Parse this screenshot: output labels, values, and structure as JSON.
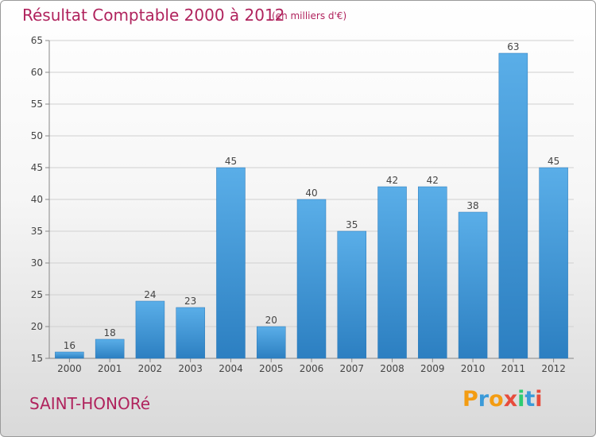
{
  "chart_data": {
    "type": "bar",
    "title": "Résultat Comptable 2000 à 2012",
    "subtitle": "(en milliers d'€)",
    "categories": [
      "2000",
      "2001",
      "2002",
      "2003",
      "2004",
      "2005",
      "2006",
      "2007",
      "2008",
      "2009",
      "2010",
      "2011",
      "2012"
    ],
    "values": [
      16,
      18,
      24,
      23,
      45,
      20,
      40,
      35,
      42,
      42,
      38,
      63,
      45
    ],
    "ylim": [
      15,
      65
    ],
    "yticks": [
      15,
      20,
      25,
      30,
      35,
      40,
      45,
      50,
      55,
      60,
      65
    ],
    "grid": true,
    "bar_color_top": "#5aaee8",
    "bar_color_bottom": "#2c7fc1",
    "title_color": "#b0235d"
  },
  "footer": {
    "place": "SAINT-HONORé",
    "brand_letters": [
      "P",
      "r",
      "o",
      "x",
      "i",
      "t",
      "i"
    ],
    "brand_colors": [
      "#f39c12",
      "#3a9ad9",
      "#f39c12",
      "#e74c3c",
      "#2ecc71",
      "#3a9ad9",
      "#e74c3c"
    ]
  }
}
